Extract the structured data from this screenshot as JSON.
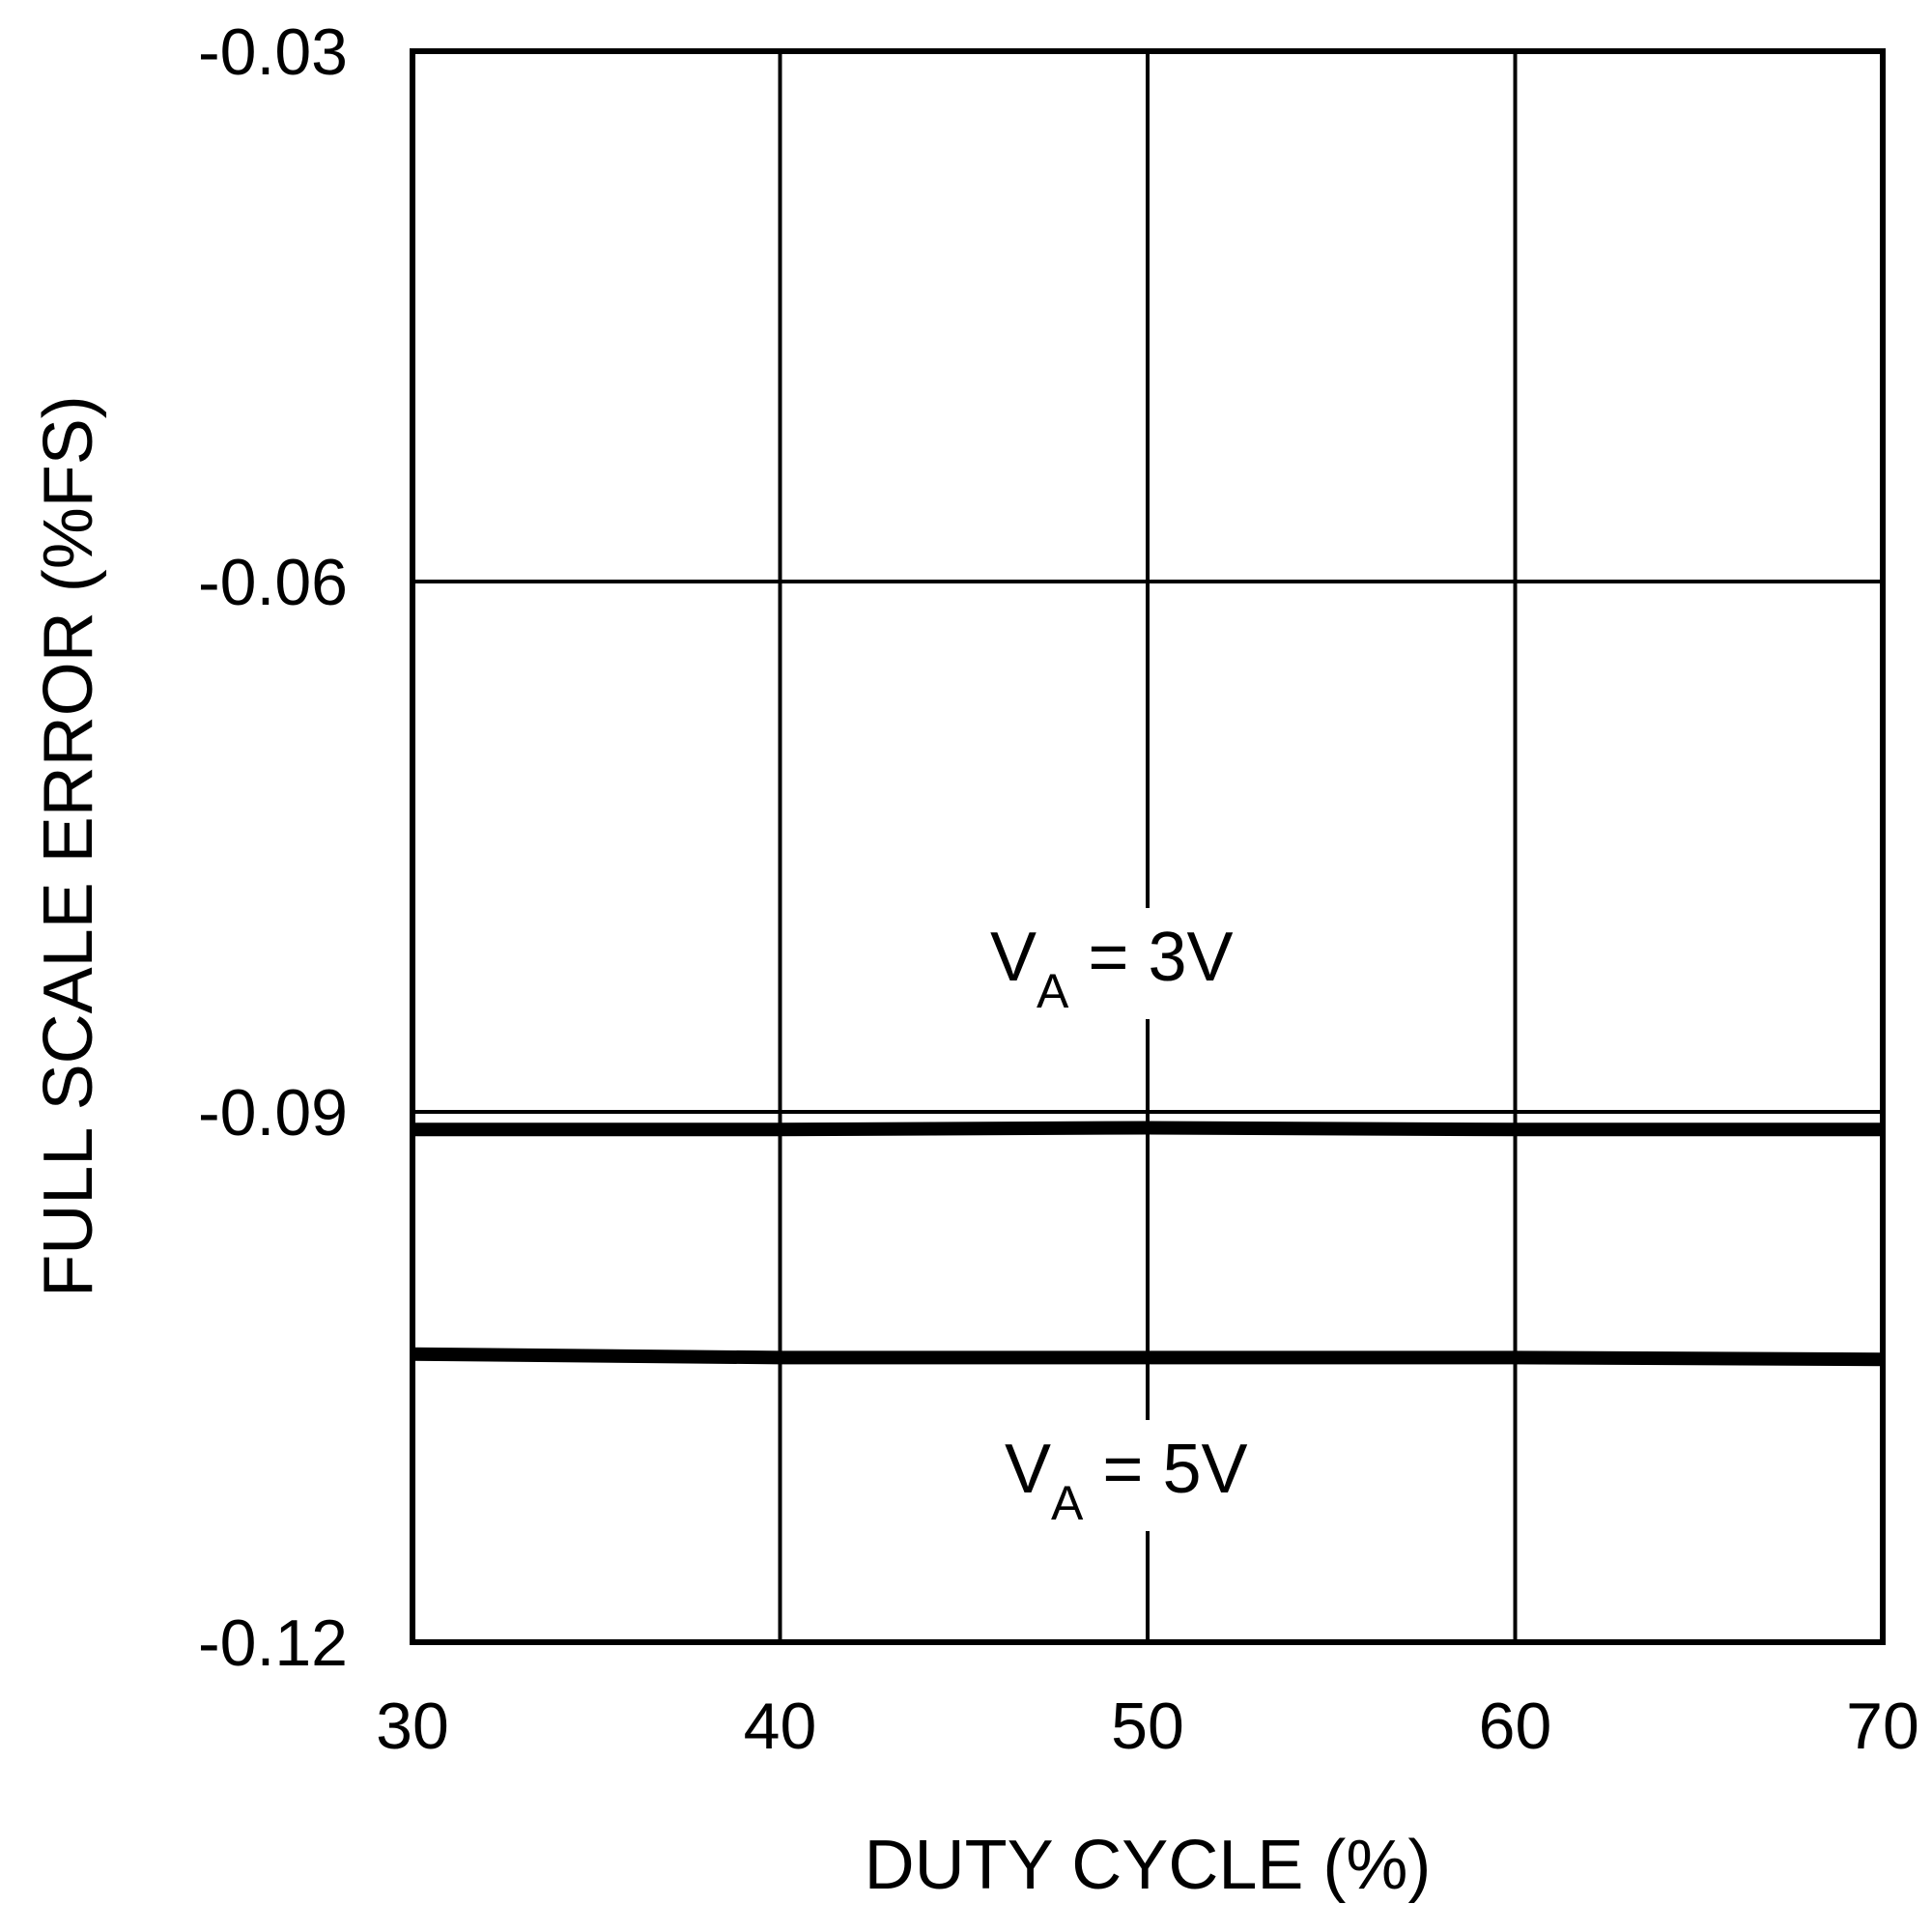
{
  "chart_data": {
    "type": "line",
    "title": "",
    "xlabel": "DUTY CYCLE (%)",
    "ylabel": "FULL SCALE ERROR (%FS)",
    "xlim": [
      30,
      70
    ],
    "ylim": [
      -0.12,
      -0.03
    ],
    "xticks": [
      "30",
      "40",
      "50",
      "60",
      "70"
    ],
    "yticks": [
      "-0.03",
      "-0.06",
      "-0.09",
      "-0.12"
    ],
    "grid": true,
    "legend": "none (inline annotations)",
    "x": [
      30,
      40,
      50,
      60,
      70
    ],
    "series": [
      {
        "name": "VA = 3V",
        "values": [
          -0.091,
          -0.091,
          -0.0909,
          -0.091,
          -0.091
        ]
      },
      {
        "name": "VA = 5V",
        "values": [
          -0.1037,
          -0.1039,
          -0.1039,
          -0.1039,
          -0.104
        ]
      }
    ],
    "annotations": [
      {
        "main": "V",
        "sub": "A",
        "rest": " = 3V"
      },
      {
        "main": "V",
        "sub": "A",
        "rest": " = 5V"
      }
    ]
  }
}
